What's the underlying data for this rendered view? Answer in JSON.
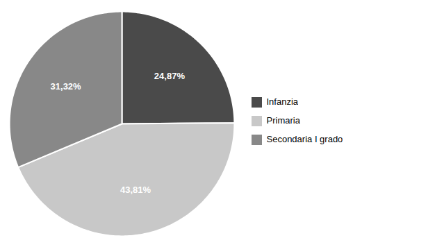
{
  "chart_data": {
    "type": "pie",
    "categories": [
      "Infanzia",
      "Primaria",
      "Secondaria I grado"
    ],
    "values": [
      24.87,
      43.81,
      31.32
    ],
    "value_labels": [
      "24,87%",
      "43,81%",
      "31,32%"
    ],
    "colors": [
      "#4a4a4a",
      "#c8c8c8",
      "#888888"
    ],
    "data_labels": true,
    "legend": "right"
  }
}
